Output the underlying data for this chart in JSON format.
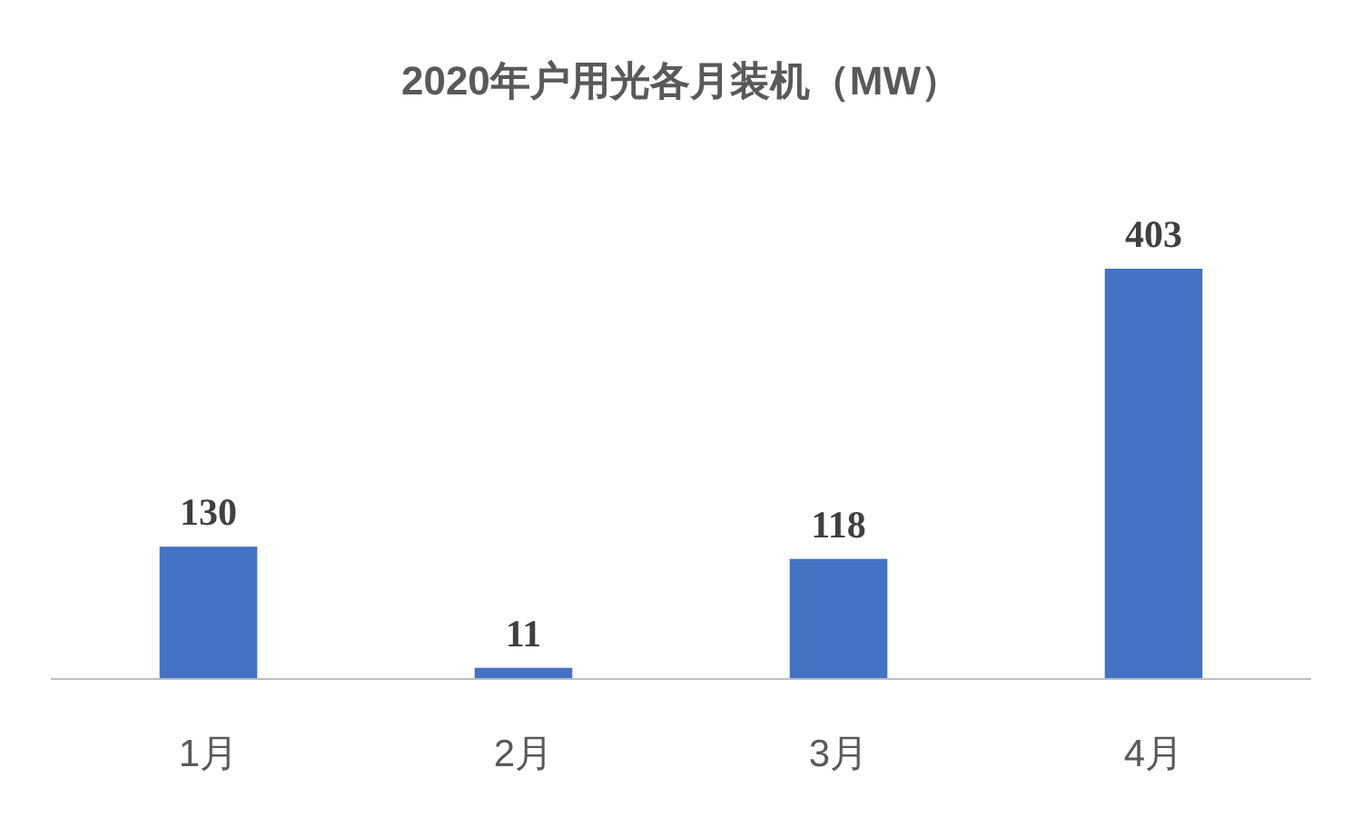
{
  "chart_data": {
    "type": "bar",
    "title": "2020年户用光各月装机（MW）",
    "categories": [
      "1月",
      "2月",
      "3月",
      "4月"
    ],
    "values": [
      130,
      11,
      118,
      403
    ],
    "color": "#4472c4",
    "data_labels": true
  }
}
